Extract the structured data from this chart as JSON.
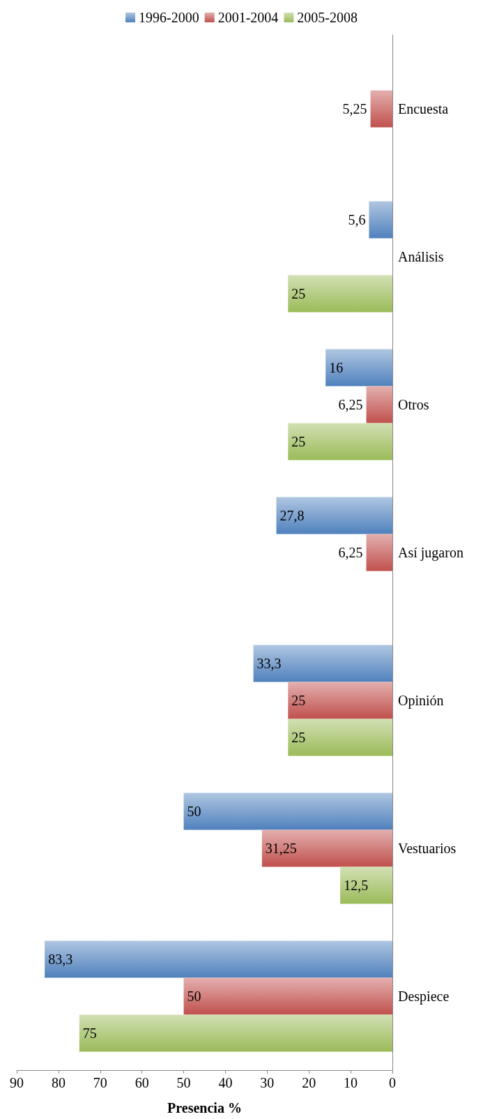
{
  "chart_data": {
    "type": "bar",
    "orientation": "horizontal",
    "xlabel": "Presencia %",
    "categories": [
      "Encuesta",
      "Análisis",
      "Otros",
      "Así jugaron",
      "Opinión",
      "Vestuarios",
      "Despiece"
    ],
    "series": [
      {
        "name": "1996-2000",
        "color": "#4f81bd",
        "values": [
          null,
          5.6,
          16,
          27.8,
          33.3,
          50,
          83.3
        ],
        "value_labels": [
          null,
          "5,6",
          "16",
          "27,8",
          "33,3",
          "50",
          "83,3"
        ]
      },
      {
        "name": "2001-2004",
        "color": "#c0504d",
        "values": [
          5.25,
          null,
          6.25,
          6.25,
          25,
          31.25,
          50
        ],
        "value_labels": [
          "5,25",
          null,
          "6,25",
          "6,25",
          "25",
          "31,25",
          "50"
        ]
      },
      {
        "name": "2005-2008",
        "color": "#9bbb59",
        "values": [
          null,
          25,
          25,
          null,
          25,
          12.5,
          75
        ],
        "value_labels": [
          null,
          "25",
          "25",
          null,
          "25",
          "12,5",
          "75"
        ]
      }
    ],
    "xlim": [
      90,
      0
    ],
    "xticks": [
      90,
      80,
      70,
      60,
      50,
      40,
      30,
      20,
      10,
      0
    ],
    "grid": false,
    "legend": "top"
  }
}
